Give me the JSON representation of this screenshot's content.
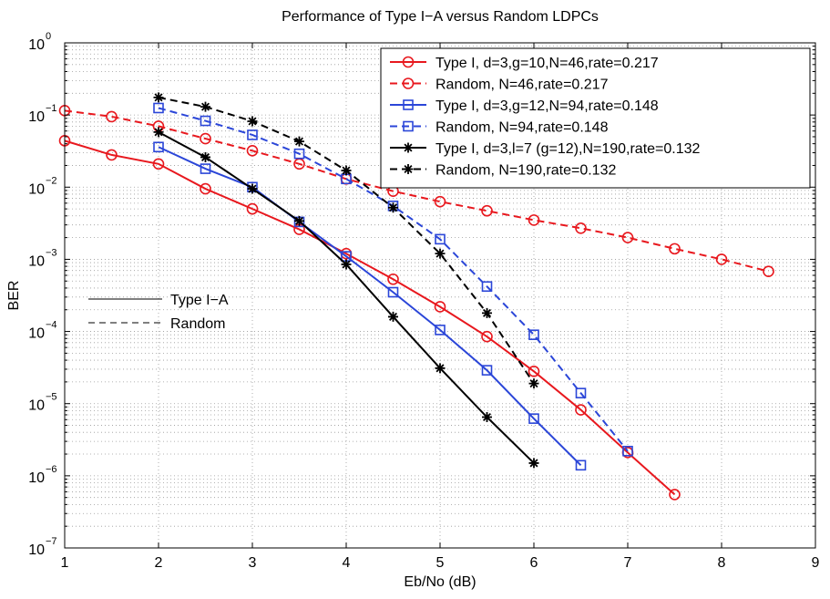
{
  "chart_data": {
    "type": "line",
    "title": "Performance of Type I−A versus Random LDPCs",
    "xlabel": "Eb/No (dB)",
    "ylabel": "BER",
    "xlim": [
      1,
      9
    ],
    "ylim": [
      1e-07,
      1
    ],
    "yscale": "log",
    "grid": true,
    "x_ticks": [
      "1",
      "2",
      "3",
      "4",
      "5",
      "6",
      "7",
      "8",
      "9"
    ],
    "y_ticks": [
      {
        "base": "10",
        "exp": "0",
        "value": 1
      },
      {
        "base": "10",
        "exp": "−1",
        "value": 0.1
      },
      {
        "base": "10",
        "exp": "−2",
        "value": 0.01
      },
      {
        "base": "10",
        "exp": "−3",
        "value": 0.001
      },
      {
        "base": "10",
        "exp": "−4",
        "value": 0.0001
      },
      {
        "base": "10",
        "exp": "−5",
        "value": 1e-05
      },
      {
        "base": "10",
        "exp": "−6",
        "value": 1e-06
      },
      {
        "base": "10",
        "exp": "−7",
        "value": 1e-07
      }
    ],
    "legend_position": "top-right",
    "series": [
      {
        "name": "Type I, d=3,g=10,N=46,rate=0.217",
        "color": "#e8181e",
        "dash": "solid",
        "marker": "circle",
        "x": [
          1,
          1.5,
          2,
          2.5,
          3,
          3.5,
          4,
          4.5,
          5,
          5.5,
          6,
          6.5,
          7,
          7.5
        ],
        "y": [
          0.044,
          0.028,
          0.021,
          0.0095,
          0.005,
          0.0026,
          0.0012,
          0.00053,
          0.00022,
          8.5e-05,
          2.8e-05,
          8.2e-06,
          2.1e-06,
          5.5e-07
        ]
      },
      {
        "name": "Random, N=46,rate=0.217",
        "color": "#e8181e",
        "dash": "dashed",
        "marker": "circle",
        "x": [
          1,
          1.5,
          2,
          2.5,
          3,
          3.5,
          4,
          4.5,
          5,
          5.5,
          6,
          6.5,
          7,
          7.5,
          8,
          8.5
        ],
        "y": [
          0.115,
          0.095,
          0.07,
          0.047,
          0.032,
          0.021,
          0.013,
          0.0088,
          0.0063,
          0.0047,
          0.0035,
          0.0027,
          0.002,
          0.0014,
          0.001,
          0.00068
        ]
      },
      {
        "name": "Type I, d=3,g=12,N=94,rate=0.148",
        "color": "#2b46d8",
        "dash": "solid",
        "marker": "square",
        "x": [
          2,
          2.5,
          3,
          3.5,
          4,
          4.5,
          5,
          5.5,
          6,
          6.5
        ],
        "y": [
          0.036,
          0.018,
          0.01,
          0.0033,
          0.0011,
          0.00035,
          0.000105,
          2.9e-05,
          6.2e-06,
          1.4e-06
        ]
      },
      {
        "name": "Random, N=94,rate=0.148",
        "color": "#2b46d8",
        "dash": "dashed",
        "marker": "square",
        "x": [
          2,
          2.5,
          3,
          3.5,
          4,
          4.5,
          5,
          5.5,
          6,
          6.5,
          7
        ],
        "y": [
          0.125,
          0.083,
          0.053,
          0.029,
          0.013,
          0.0055,
          0.0019,
          0.00042,
          9e-05,
          1.4e-05,
          2.2e-06
        ]
      },
      {
        "name": "Type I, d=3,l=7 (g=12),N=190,rate=0.132",
        "color": "#000000",
        "dash": "solid",
        "marker": "star",
        "x": [
          2,
          2.5,
          3,
          3.5,
          4,
          4.5,
          5,
          5.5,
          6
        ],
        "y": [
          0.058,
          0.026,
          0.0095,
          0.0034,
          0.00085,
          0.00016,
          3.1e-05,
          6.5e-06,
          1.5e-06
        ]
      },
      {
        "name": "Random, N=190,rate=0.132",
        "color": "#000000",
        "dash": "dashed",
        "marker": "star",
        "x": [
          2,
          2.5,
          3,
          3.5,
          4,
          4.5,
          5,
          5.5,
          6
        ],
        "y": [
          0.175,
          0.13,
          0.082,
          0.043,
          0.017,
          0.0052,
          0.0012,
          0.00018,
          1.9e-05
        ]
      }
    ],
    "annotations": [
      {
        "label": "Type I−A",
        "dash": "solid"
      },
      {
        "label": "Random",
        "dash": "dashed"
      }
    ]
  }
}
